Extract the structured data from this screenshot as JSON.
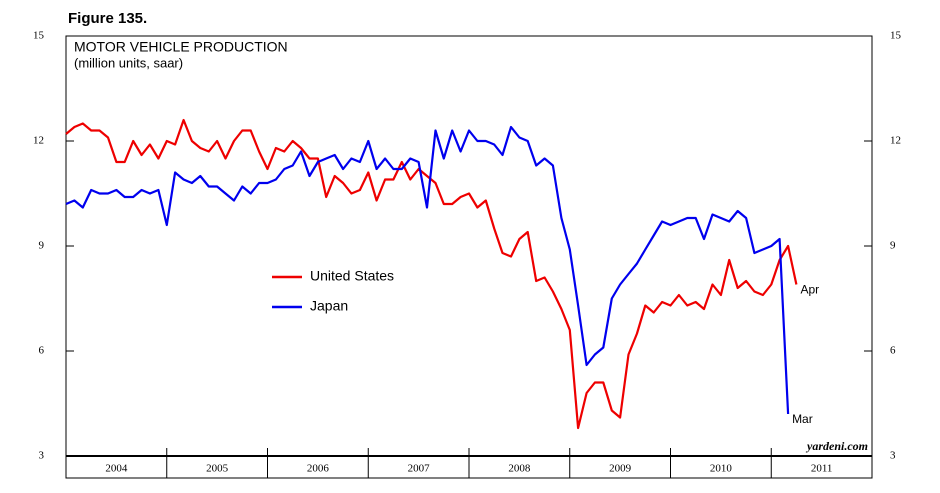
{
  "chart_data": {
    "type": "line",
    "figure_label": "Figure 135.",
    "title": "MOTOR VEHICLE PRODUCTION",
    "subtitle": "(million units, saar)",
    "source": "yardeni.com",
    "x": [
      2004,
      2004.083,
      2004.167,
      2004.25,
      2004.333,
      2004.417,
      2004.5,
      2004.583,
      2004.667,
      2004.75,
      2004.833,
      2004.917,
      2005,
      2005.083,
      2005.167,
      2005.25,
      2005.333,
      2005.417,
      2005.5,
      2005.583,
      2005.667,
      2005.75,
      2005.833,
      2005.917,
      2006,
      2006.083,
      2006.167,
      2006.25,
      2006.333,
      2006.417,
      2006.5,
      2006.583,
      2006.667,
      2006.75,
      2006.833,
      2006.917,
      2007,
      2007.083,
      2007.167,
      2007.25,
      2007.333,
      2007.417,
      2007.5,
      2007.583,
      2007.667,
      2007.75,
      2007.833,
      2007.917,
      2008,
      2008.083,
      2008.167,
      2008.25,
      2008.333,
      2008.417,
      2008.5,
      2008.583,
      2008.667,
      2008.75,
      2008.833,
      2008.917,
      2009,
      2009.083,
      2009.167,
      2009.25,
      2009.333,
      2009.417,
      2009.5,
      2009.583,
      2009.667,
      2009.75,
      2009.833,
      2009.917,
      2010,
      2010.083,
      2010.167,
      2010.25,
      2010.333,
      2010.417,
      2010.5,
      2010.583,
      2010.667,
      2010.75,
      2010.833,
      2010.917,
      2011,
      2011.083,
      2011.167,
      2011.25
    ],
    "series": [
      {
        "name": "United States",
        "color": "#ee0000",
        "end_label": "Apr",
        "values": [
          12.2,
          12.4,
          12.5,
          12.3,
          12.3,
          12.1,
          11.4,
          11.4,
          12.0,
          11.6,
          11.9,
          11.5,
          12.0,
          11.9,
          12.6,
          12.0,
          11.8,
          11.7,
          12.0,
          11.5,
          12.0,
          12.3,
          12.3,
          11.7,
          11.2,
          11.8,
          11.7,
          12.0,
          11.8,
          11.5,
          11.5,
          10.4,
          11.0,
          10.8,
          10.5,
          10.6,
          11.1,
          10.3,
          10.9,
          10.9,
          11.4,
          10.9,
          11.2,
          11.0,
          10.8,
          10.2,
          10.2,
          10.4,
          10.5,
          10.1,
          10.3,
          9.5,
          8.8,
          8.7,
          9.2,
          9.4,
          8.0,
          8.1,
          7.7,
          7.2,
          6.6,
          3.8,
          4.8,
          5.1,
          5.1,
          4.3,
          4.1,
          5.9,
          6.5,
          7.3,
          7.1,
          7.4,
          7.3,
          7.6,
          7.3,
          7.4,
          7.2,
          7.9,
          7.6,
          8.6,
          7.8,
          8.0,
          7.7,
          7.6,
          7.9,
          8.6,
          9.0,
          7.9
        ]
      },
      {
        "name": "Japan",
        "color": "#0000ee",
        "end_label": "Mar",
        "values": [
          10.2,
          10.3,
          10.1,
          10.6,
          10.5,
          10.5,
          10.6,
          10.4,
          10.4,
          10.6,
          10.5,
          10.6,
          9.6,
          11.1,
          10.9,
          10.8,
          11.0,
          10.7,
          10.7,
          10.5,
          10.3,
          10.7,
          10.5,
          10.8,
          10.8,
          10.9,
          11.2,
          11.3,
          11.7,
          11.0,
          11.4,
          11.5,
          11.6,
          11.2,
          11.5,
          11.4,
          12.0,
          11.2,
          11.5,
          11.2,
          11.2,
          11.5,
          11.4,
          10.1,
          12.3,
          11.5,
          12.3,
          11.7,
          12.3,
          12.0,
          12.0,
          11.9,
          11.6,
          12.4,
          12.1,
          12.0,
          11.3,
          11.5,
          11.3,
          9.8,
          8.9,
          7.3,
          5.6,
          5.9,
          6.1,
          7.5,
          7.9,
          8.2,
          8.5,
          8.9,
          9.3,
          9.7,
          9.6,
          9.7,
          9.8,
          9.8,
          9.2,
          9.9,
          9.8,
          9.7,
          10.0,
          9.8,
          8.8,
          8.9,
          9.0,
          9.2,
          4.2,
          null
        ]
      }
    ],
    "xlim": [
      2004,
      2012
    ],
    "xticks": [
      2004,
      2005,
      2006,
      2007,
      2008,
      2009,
      2010,
      2011
    ],
    "ylim": [
      3,
      15
    ],
    "yticks": [
      3,
      6,
      9,
      12,
      15
    ],
    "y2lim": [
      3,
      15
    ],
    "y2ticks": [
      3,
      6,
      9,
      12,
      15
    ],
    "grid": false
  }
}
